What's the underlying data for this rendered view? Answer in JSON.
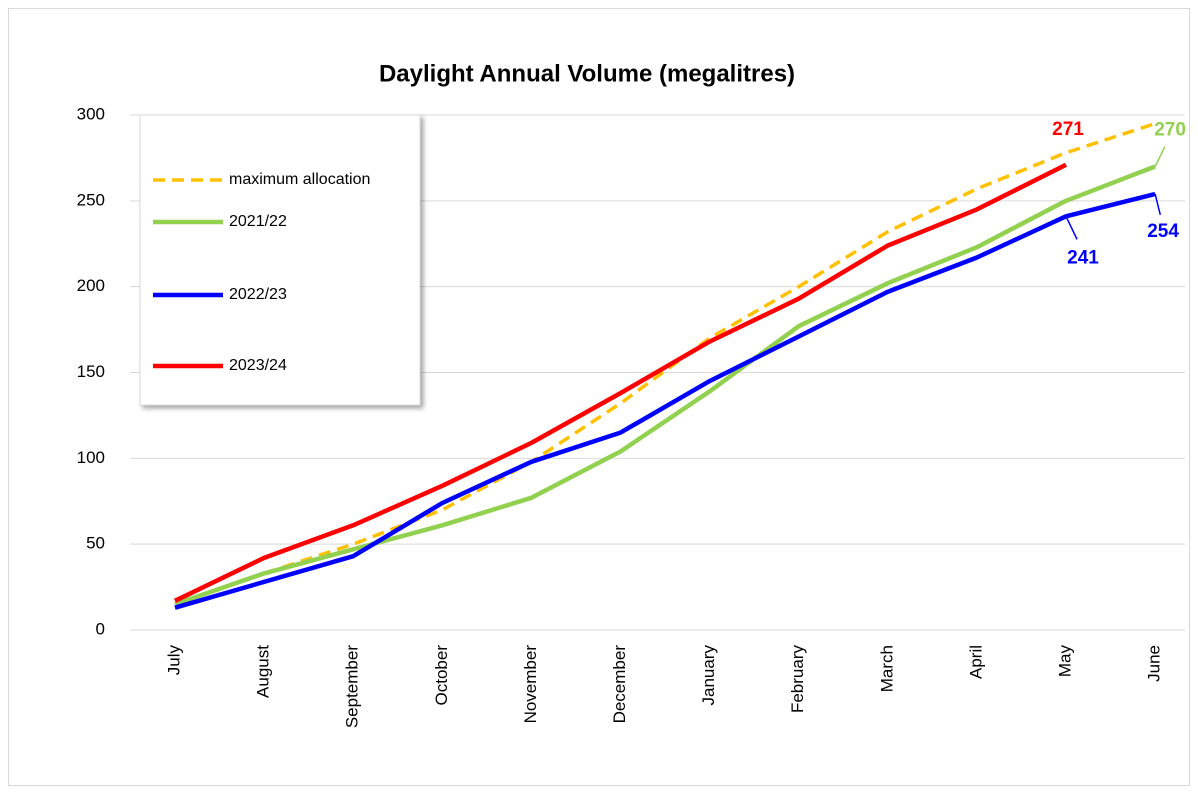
{
  "chart_data": {
    "type": "line",
    "title": "Daylight Annual Volume (megalitres)",
    "categories": [
      "July",
      "August",
      "September",
      "October",
      "November",
      "December",
      "January",
      "February",
      "March",
      "April",
      "May",
      "June"
    ],
    "series": [
      {
        "name": "maximum allocation",
        "color": "#ffc000",
        "dashed": true,
        "values": [
          15,
          33,
          50,
          70,
          98,
          132,
          170,
          200,
          232,
          257,
          278,
          295
        ]
      },
      {
        "name": "2021/22",
        "color": "#92d050",
        "values": [
          15,
          33,
          47,
          61,
          77,
          104,
          139,
          177,
          202,
          223,
          250,
          270
        ],
        "value_labels": [
          null,
          null,
          null,
          null,
          null,
          null,
          null,
          null,
          null,
          null,
          null,
          "270"
        ]
      },
      {
        "name": "2022/23",
        "color": "#0000ff",
        "values": [
          13,
          28,
          43,
          74,
          98,
          115,
          145,
          171,
          197,
          217,
          241,
          254
        ],
        "value_labels": [
          null,
          null,
          null,
          null,
          null,
          null,
          null,
          null,
          null,
          null,
          "241",
          "254"
        ]
      },
      {
        "name": "2023/24",
        "color": "#ff0000",
        "values": [
          17,
          42,
          61,
          84,
          109,
          138,
          168,
          193,
          224,
          245,
          271,
          null
        ],
        "value_labels": [
          null,
          null,
          null,
          null,
          null,
          null,
          null,
          null,
          null,
          null,
          "271",
          null
        ]
      }
    ],
    "ylim": [
      0,
      300
    ],
    "yticks": [
      0,
      50,
      100,
      150,
      200,
      250,
      300
    ],
    "grid": true,
    "legend": "upper left"
  }
}
